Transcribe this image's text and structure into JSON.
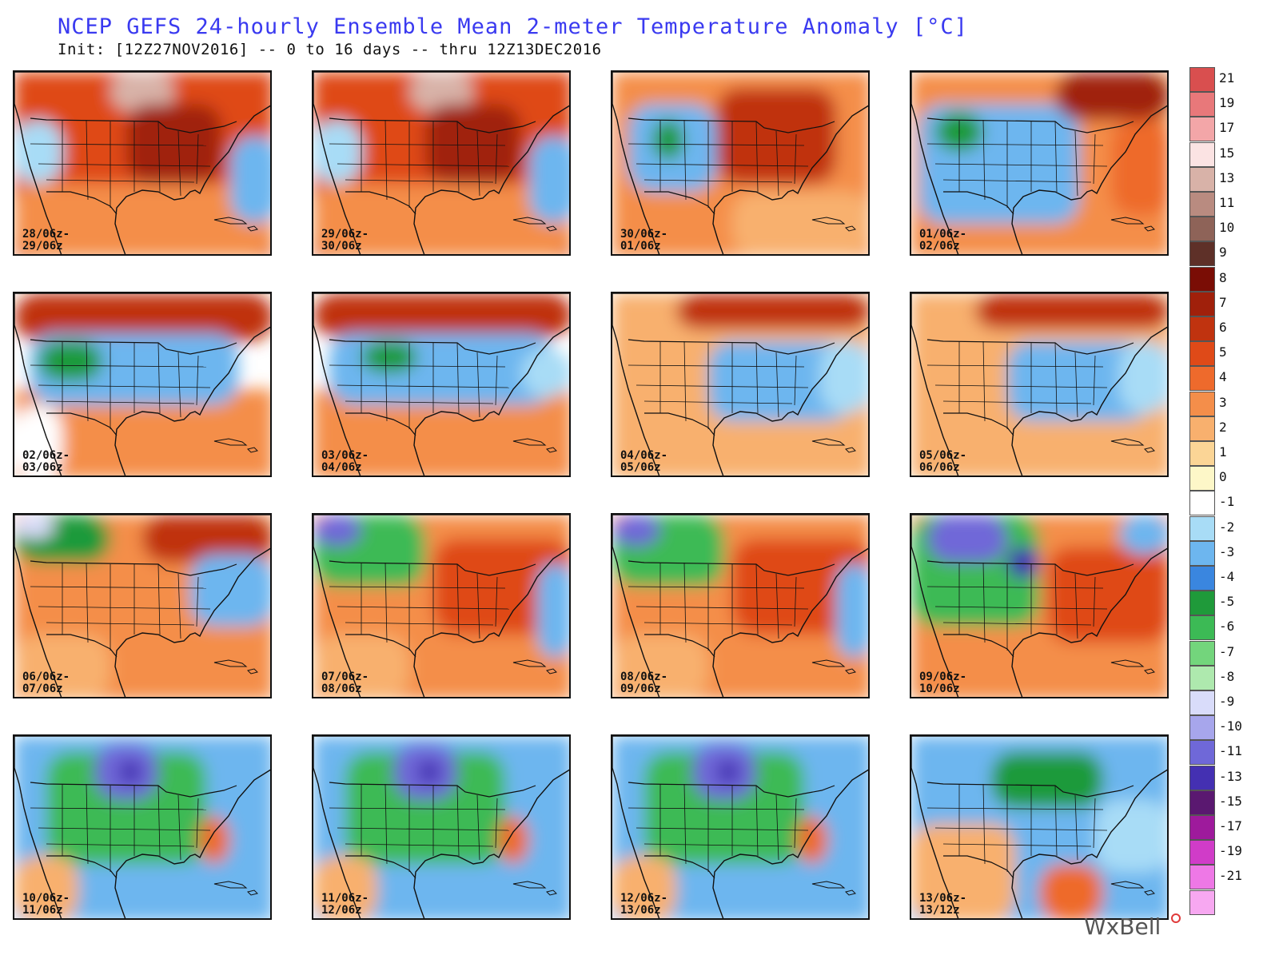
{
  "header": {
    "title": "NCEP GEFS 24-hourly Ensemble Mean 2-meter Temperature Anomaly [°C]",
    "subtitle": "Init: [12Z27NOV2016] -- 0 to 16 days -- thru 12Z13DEC2016"
  },
  "panels": [
    {
      "line1": "28/06z-",
      "line2": "29/06z",
      "pattern": "warm_east"
    },
    {
      "line1": "29/06z-",
      "line2": "30/06z",
      "pattern": "warm_east"
    },
    {
      "line1": "30/06z-",
      "line2": "01/06z",
      "pattern": "warm_east_cold_west"
    },
    {
      "line1": "01/06z-",
      "line2": "02/06z",
      "pattern": "cold_west_warm_ne"
    },
    {
      "line1": "02/06z-",
      "line2": "03/06z",
      "pattern": "cold_west_warm_north"
    },
    {
      "line1": "03/06z-",
      "line2": "04/06z",
      "pattern": "cold_center_warm_north"
    },
    {
      "line1": "04/06z-",
      "line2": "05/06z",
      "pattern": "cold_east_warm_north"
    },
    {
      "line1": "05/06z-",
      "line2": "06/06z",
      "pattern": "cold_east_warm_north"
    },
    {
      "line1": "06/06z-",
      "line2": "07/06z",
      "pattern": "cold_nw_warm_center"
    },
    {
      "line1": "07/06z-",
      "line2": "08/06z",
      "pattern": "cold_nw_warm_east"
    },
    {
      "line1": "08/06z-",
      "line2": "09/06z",
      "pattern": "cold_nw_warm_east"
    },
    {
      "line1": "09/06z-",
      "line2": "10/06z",
      "pattern": "cold_west_warm_east"
    },
    {
      "line1": "10/06z-",
      "line2": "11/06z",
      "pattern": "cold_all"
    },
    {
      "line1": "11/06z-",
      "line2": "12/06z",
      "pattern": "cold_all"
    },
    {
      "line1": "12/06z-",
      "line2": "13/06z",
      "pattern": "cold_all"
    },
    {
      "line1": "13/06z-",
      "line2": "13/12z",
      "pattern": "cold_center_warm_sw"
    }
  ],
  "colorbar": {
    "unit": "°C",
    "entries": [
      {
        "label": "21",
        "color": "#d94f4f"
      },
      {
        "label": "19",
        "color": "#e8787a"
      },
      {
        "label": "17",
        "color": "#f3a6a8"
      },
      {
        "label": "15",
        "color": "#fbe3e3"
      },
      {
        "label": "13",
        "color": "#d8b2a8"
      },
      {
        "label": "11",
        "color": "#b98b80"
      },
      {
        "label": "10",
        "color": "#8e6358"
      },
      {
        "label": "9",
        "color": "#5e3028"
      },
      {
        "label": "8",
        "color": "#7a0d05"
      },
      {
        "label": "7",
        "color": "#a0200b"
      },
      {
        "label": "6",
        "color": "#c0330f"
      },
      {
        "label": "5",
        "color": "#df4a18"
      },
      {
        "label": "4",
        "color": "#ee6a2c"
      },
      {
        "label": "3",
        "color": "#f48e4a"
      },
      {
        "label": "2",
        "color": "#f8b06e"
      },
      {
        "label": "1",
        "color": "#fbd596"
      },
      {
        "label": "0",
        "color": "#fdf7c8"
      },
      {
        "label": "-1",
        "color": "#ffffff"
      },
      {
        "label": "-2",
        "color": "#a8dcf6"
      },
      {
        "label": "-3",
        "color": "#6db6ef"
      },
      {
        "label": "-4",
        "color": "#3a86df"
      },
      {
        "label": "-5",
        "color": "#1f9a3a"
      },
      {
        "label": "-6",
        "color": "#3cba55"
      },
      {
        "label": "-7",
        "color": "#73d57c"
      },
      {
        "label": "-8",
        "color": "#aee9ae"
      },
      {
        "label": "-9",
        "color": "#d9dcfa"
      },
      {
        "label": "-10",
        "color": "#a7a6ec"
      },
      {
        "label": "-11",
        "color": "#6f68d8"
      },
      {
        "label": "-13",
        "color": "#4430b2"
      },
      {
        "label": "-15",
        "color": "#5a1870"
      },
      {
        "label": "-17",
        "color": "#9e1a9c"
      },
      {
        "label": "-19",
        "color": "#d03cc8"
      },
      {
        "label": "-21",
        "color": "#ee78e6"
      },
      {
        "label": "",
        "color": "#f7a8f1"
      }
    ]
  },
  "branding": {
    "logo_text": "WxBell"
  }
}
